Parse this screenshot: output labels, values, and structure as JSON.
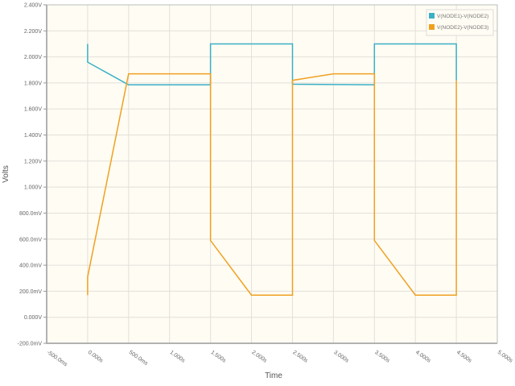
{
  "chart_data": {
    "type": "line",
    "title": "",
    "xlabel": "Time",
    "ylabel": "Volts",
    "xlim": [
      -0.5,
      5.0
    ],
    "ylim": [
      -0.2,
      2.4
    ],
    "grid": true,
    "legend_position": "top-right",
    "x_ticks": [
      -0.5,
      0,
      0.5,
      1,
      1.5,
      2,
      2.5,
      3,
      3.5,
      4,
      4.5,
      5
    ],
    "x_tick_labels": [
      "-500.0ms",
      "0.000s",
      "500.0ms",
      "1.000s",
      "1.500s",
      "2.000s",
      "2.500s",
      "3.000s",
      "3.500s",
      "4.000s",
      "4.500s",
      "5.000s"
    ],
    "y_ticks": [
      -0.2,
      0,
      0.2,
      0.4,
      0.6,
      0.8,
      1.0,
      1.2,
      1.4,
      1.6,
      1.8,
      2.0,
      2.2,
      2.4
    ],
    "y_tick_labels": [
      "-200.0mV",
      "0.000V",
      "200.0mV",
      "400.0mV",
      "600.0mV",
      "800.0mV",
      "1.000V",
      "1.200V",
      "1.400V",
      "1.600V",
      "1.800V",
      "2.000V",
      "2.200V",
      "2.400V"
    ],
    "series": [
      {
        "name": "V(NODE1)-V(NODE2)",
        "color": "#3aafc6",
        "x": [
          0,
          0,
          0.5,
          1.5,
          1.5,
          2.5,
          2.5,
          3.5,
          3.5,
          4.5,
          4.5
        ],
        "y": [
          2.1,
          1.96,
          1.785,
          1.785,
          2.1,
          2.1,
          1.79,
          1.785,
          2.1,
          2.1,
          1.82
        ]
      },
      {
        "name": "V(NODE2)-V(NODE3)",
        "color": "#f0a020",
        "x": [
          0,
          0,
          0.5,
          1.5,
          1.5,
          2.0,
          2.5,
          2.5,
          3.0,
          3.5,
          3.5,
          4.0,
          4.5,
          4.5
        ],
        "y": [
          0.17,
          0.31,
          1.87,
          1.87,
          0.59,
          0.17,
          0.17,
          1.82,
          1.87,
          1.87,
          0.59,
          0.17,
          0.17,
          1.82
        ]
      }
    ]
  }
}
